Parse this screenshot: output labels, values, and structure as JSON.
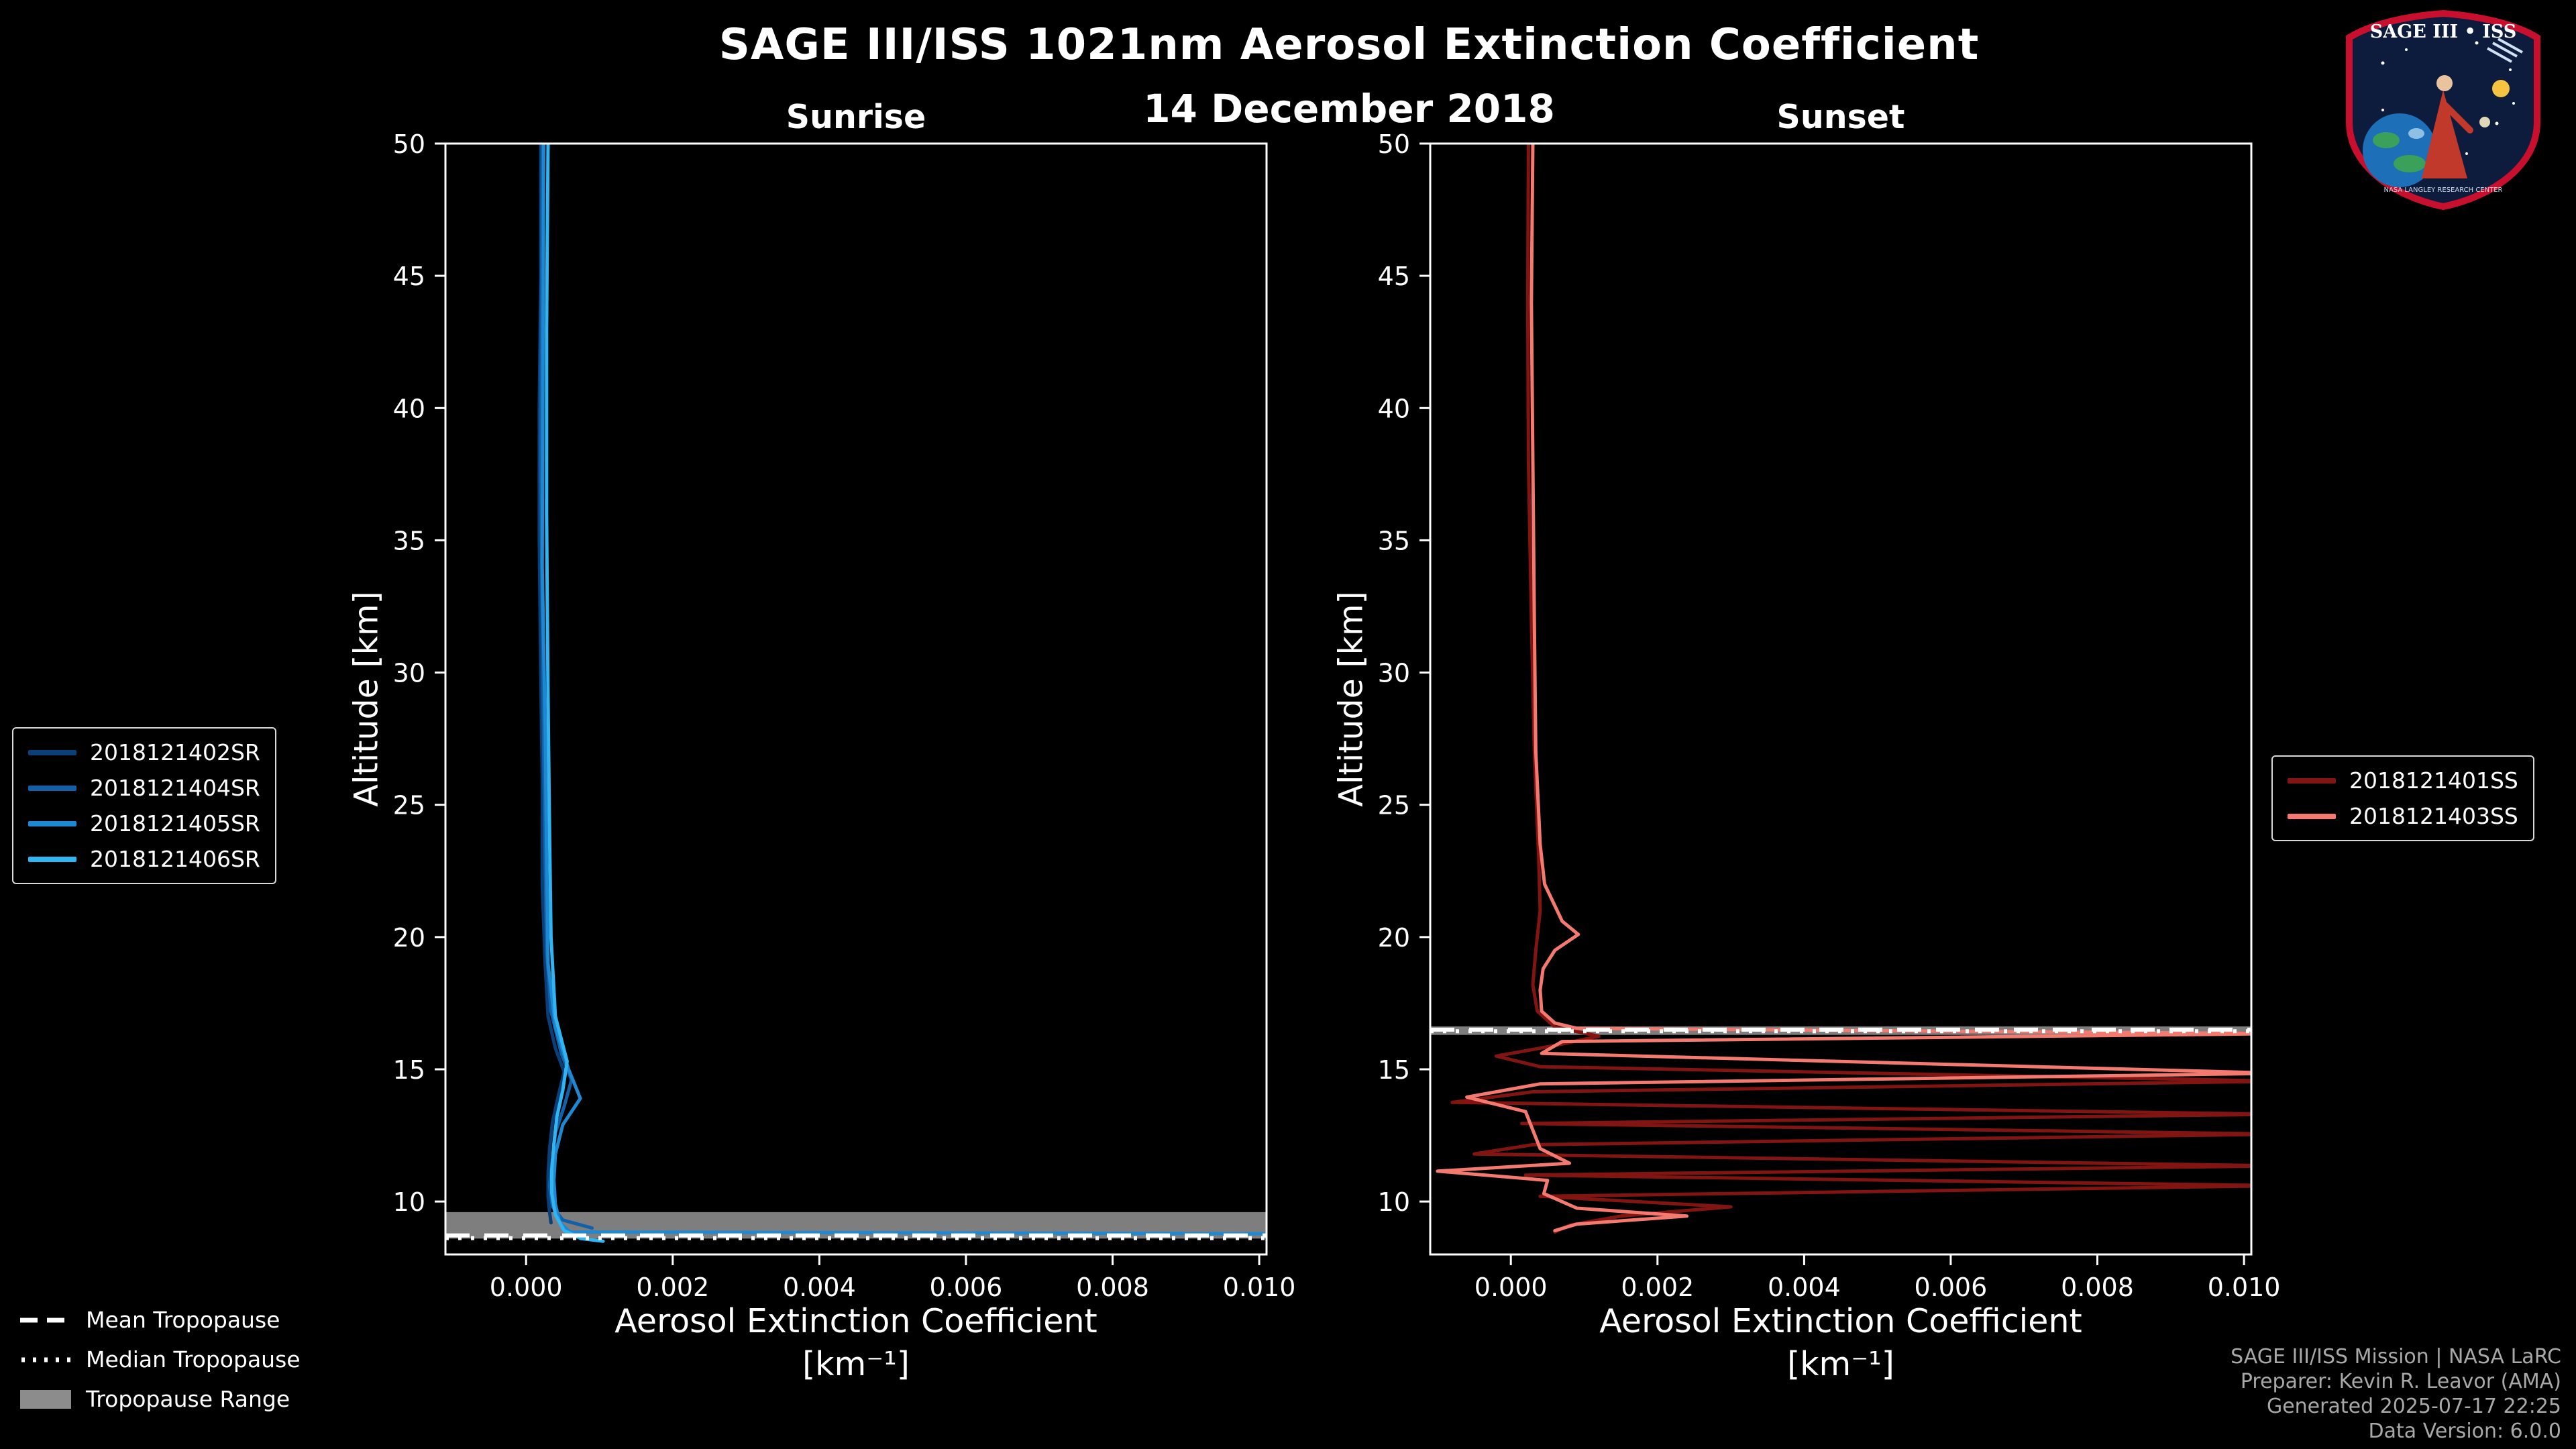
{
  "chart_data": {
    "type": "line",
    "title": "SAGE III/ISS 1021nm Aerosol Extinction Coefficient",
    "subtitle_date": "14 December 2018",
    "xlabel_line1": "Aerosol Extinction Coefficient",
    "xlabel_line2": "[km⁻¹]",
    "ylabel": "Altitude [km]",
    "xlim": [
      -0.0011,
      0.0101
    ],
    "ylim": [
      8,
      50
    ],
    "xticks": {
      "values": [
        0.0,
        0.002,
        0.004,
        0.006,
        0.008,
        0.01
      ],
      "labels": [
        "0.000",
        "0.002",
        "0.004",
        "0.006",
        "0.008",
        "0.010"
      ]
    },
    "yticks": {
      "values": [
        10,
        15,
        20,
        25,
        30,
        35,
        40,
        45,
        50
      ],
      "labels": [
        "10",
        "15",
        "20",
        "25",
        "30",
        "35",
        "40",
        "45",
        "50"
      ]
    },
    "panels": [
      {
        "id": "sunrise",
        "subtitle": "Sunrise",
        "tropopause": {
          "band": [
            8.6,
            9.6
          ],
          "mean": 8.72,
          "median": 8.62
        },
        "series": [
          {
            "name": "2018121402SR",
            "color": "#0a3f77",
            "points": [
              [
                0.0002,
                50
              ],
              [
                0.0002,
                45
              ],
              [
                0.00018,
                40
              ],
              [
                0.00018,
                35
              ],
              [
                0.0002,
                30
              ],
              [
                0.00022,
                26
              ],
              [
                0.00022,
                22
              ],
              [
                0.00026,
                19
              ],
              [
                0.0003,
                17
              ],
              [
                0.0004,
                15.8
              ],
              [
                0.00052,
                14.9
              ],
              [
                0.00044,
                14.0
              ],
              [
                0.00036,
                13.0
              ],
              [
                0.00032,
                12.0
              ],
              [
                0.0003,
                11.0
              ],
              [
                0.0003,
                10.2
              ],
              [
                0.00032,
                9.6
              ],
              [
                0.00034,
                9.2
              ]
            ]
          },
          {
            "name": "2018121404SR",
            "color": "#1260a8",
            "points": [
              [
                0.00022,
                50
              ],
              [
                0.00021,
                44
              ],
              [
                0.0002,
                38
              ],
              [
                0.00022,
                32
              ],
              [
                0.00024,
                27
              ],
              [
                0.00026,
                23
              ],
              [
                0.00028,
                19.5
              ],
              [
                0.00034,
                17.2
              ],
              [
                0.00048,
                15.6
              ],
              [
                0.00062,
                14.6
              ],
              [
                0.00052,
                13.6
              ],
              [
                0.0004,
                12.6
              ],
              [
                0.00036,
                11.6
              ],
              [
                0.00032,
                10.6
              ],
              [
                0.00036,
                9.8
              ],
              [
                0.0005,
                9.3
              ],
              [
                0.0009,
                9.0
              ]
            ]
          },
          {
            "name": "2018121405SR",
            "color": "#1e88d2",
            "points": [
              [
                0.00024,
                50
              ],
              [
                0.00023,
                42
              ],
              [
                0.00022,
                34
              ],
              [
                0.00026,
                28
              ],
              [
                0.00028,
                23
              ],
              [
                0.0003,
                19
              ],
              [
                0.0004,
                16.6
              ],
              [
                0.00058,
                15.0
              ],
              [
                0.00074,
                13.9
              ],
              [
                0.0005,
                12.9
              ],
              [
                0.0004,
                11.8
              ],
              [
                0.00038,
                10.8
              ],
              [
                0.0004,
                9.9
              ],
              [
                0.00046,
                9.2
              ],
              [
                0.0006,
                8.85
              ],
              [
                0.0105,
                8.78
              ]
            ]
          },
          {
            "name": "2018121406SR",
            "color": "#31b4f2",
            "points": [
              [
                0.0003,
                50
              ],
              [
                0.00028,
                43
              ],
              [
                0.00028,
                36
              ],
              [
                0.0003,
                29
              ],
              [
                0.00032,
                24
              ],
              [
                0.00034,
                20
              ],
              [
                0.0004,
                17
              ],
              [
                0.00056,
                15.3
              ],
              [
                0.0005,
                14.2
              ],
              [
                0.00042,
                13.2
              ],
              [
                0.00038,
                12.2
              ],
              [
                0.00035,
                11.2
              ],
              [
                0.00035,
                10.3
              ],
              [
                0.0004,
                9.5
              ],
              [
                0.00052,
                8.9
              ],
              [
                0.00075,
                8.6
              ],
              [
                0.00105,
                8.5
              ]
            ]
          }
        ]
      },
      {
        "id": "sunset",
        "subtitle": "Sunset",
        "tropopause": {
          "band": [
            16.3,
            16.62
          ],
          "mean": 16.5,
          "median": 16.44
        },
        "series": [
          {
            "name": "2018121401SS",
            "color": "#821512",
            "points": [
              [
                0.00024,
                50
              ],
              [
                0.00023,
                44
              ],
              [
                0.00024,
                38
              ],
              [
                0.00028,
                32
              ],
              [
                0.00032,
                27
              ],
              [
                0.00038,
                23
              ],
              [
                0.0004,
                21
              ],
              [
                0.00034,
                19.5
              ],
              [
                0.0003,
                18.2
              ],
              [
                0.00036,
                17.2
              ],
              [
                0.0006,
                16.6
              ],
              [
                0.0012,
                16.25
              ],
              [
                0.0006,
                15.9
              ],
              [
                -0.0002,
                15.5
              ],
              [
                0.0004,
                15.1
              ],
              [
                0.0105,
                14.55
              ],
              [
                0.0003,
                14.15
              ],
              [
                -0.0008,
                13.75
              ],
              [
                0.0105,
                13.3
              ],
              [
                0.00015,
                12.95
              ],
              [
                0.0105,
                12.55
              ],
              [
                0.0003,
                12.15
              ],
              [
                -0.0005,
                11.8
              ],
              [
                0.0105,
                11.35
              ],
              [
                0.0002,
                11.0
              ],
              [
                0.0105,
                10.6
              ],
              [
                0.0004,
                10.2
              ],
              [
                0.003,
                9.8
              ],
              [
                0.0015,
                9.45
              ],
              [
                0.0008,
                9.1
              ],
              [
                0.0006,
                8.85
              ]
            ]
          },
          {
            "name": "2018121403SS",
            "color": "#f4796f",
            "points": [
              [
                0.0003,
                50
              ],
              [
                0.00028,
                44
              ],
              [
                0.0003,
                38
              ],
              [
                0.00032,
                32
              ],
              [
                0.00034,
                27
              ],
              [
                0.0004,
                23.5
              ],
              [
                0.00046,
                22.0
              ],
              [
                0.0007,
                20.6
              ],
              [
                0.00092,
                20.1
              ],
              [
                0.0006,
                19.5
              ],
              [
                0.00044,
                18.8
              ],
              [
                0.0004,
                18.0
              ],
              [
                0.00042,
                17.2
              ],
              [
                0.0006,
                16.75
              ],
              [
                0.0009,
                16.55
              ],
              [
                0.0105,
                16.35
              ],
              [
                0.0007,
                16.05
              ],
              [
                0.00042,
                15.6
              ],
              [
                0.0105,
                14.85
              ],
              [
                0.0004,
                14.45
              ],
              [
                -0.0006,
                13.95
              ],
              [
                0.0002,
                13.4
              ],
              [
                0.0003,
                12.7
              ],
              [
                0.0004,
                12.0
              ],
              [
                0.0008,
                11.45
              ],
              [
                -0.001,
                11.15
              ],
              [
                0.0005,
                10.8
              ],
              [
                0.00045,
                10.3
              ],
              [
                0.0009,
                9.75
              ],
              [
                0.0024,
                9.45
              ],
              [
                0.0009,
                9.15
              ],
              [
                0.0006,
                8.9
              ]
            ]
          }
        ]
      }
    ]
  },
  "legend_sunrise": {
    "items": [
      {
        "label": "2018121402SR",
        "color": "#0a3f77"
      },
      {
        "label": "2018121404SR",
        "color": "#1260a8"
      },
      {
        "label": "2018121405SR",
        "color": "#1e88d2"
      },
      {
        "label": "2018121406SR",
        "color": "#31b4f2"
      }
    ]
  },
  "legend_sunset": {
    "items": [
      {
        "label": "2018121401SS",
        "color": "#821512"
      },
      {
        "label": "2018121403SS",
        "color": "#f4796f"
      }
    ]
  },
  "legend_tropopause": {
    "mean_label": "Mean Tropopause",
    "median_label": "Median Tropopause",
    "range_label": "Tropopause Range"
  },
  "credits": {
    "line1": "SAGE III/ISS Mission | NASA LaRC",
    "line2": "Preparer: Kevin R. Leavor (AMA)",
    "line3": "Generated 2025-07-17 22:25",
    "line4": "Data Version: 6.0.0"
  },
  "logo": {
    "title": "SAGE III • ISS",
    "ring_text": "NASA LANGLEY RESEARCH CENTER"
  }
}
